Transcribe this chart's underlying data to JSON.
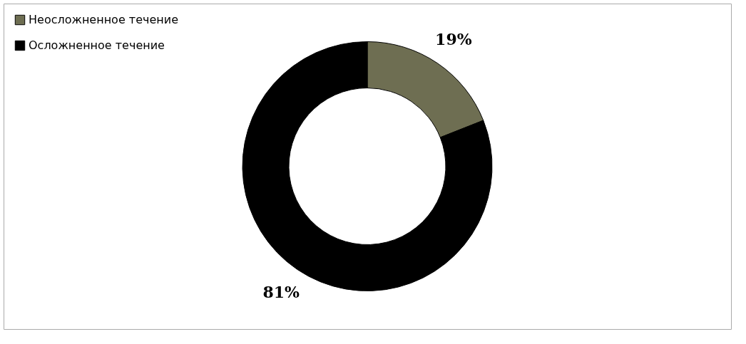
{
  "chart_data": {
    "type": "donut",
    "categories": [
      "Неосложненное течение",
      "Осложненное течение"
    ],
    "values": [
      19,
      81
    ],
    "colors": [
      "#6e6e52",
      "#000000"
    ],
    "value_labels": [
      "19%",
      "81%"
    ],
    "legend": "top left"
  }
}
